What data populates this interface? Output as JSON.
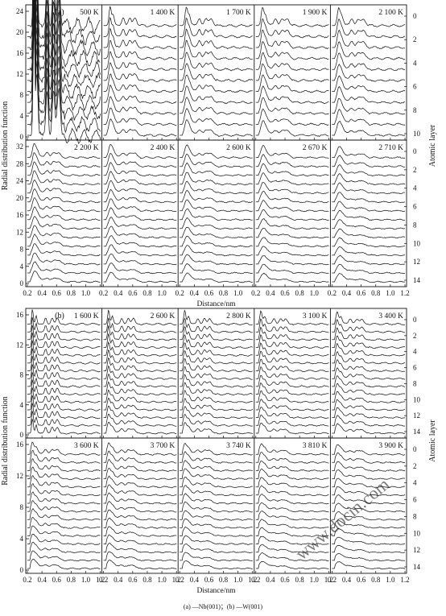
{
  "figure": {
    "caption": "(a) —Nb(001)；(b) —W(001)",
    "watermark": "www.docin.com"
  },
  "chart_data": [
    {
      "type": "line",
      "panel_label": "(a)",
      "xlabel": "Distance/nm",
      "ylabel": "Radial distribution function",
      "right_label": "Atomic layer",
      "rows": [
        {
          "temperatures": [
            "500 K",
            "1 400 K",
            "1 700 K",
            "1 900 K",
            "2 100 K"
          ],
          "yticks": [
            "0",
            "4",
            "8",
            "12",
            "16",
            "20",
            "24"
          ],
          "ylim": [
            0,
            24
          ],
          "layer_ticks": [
            "0",
            "2",
            "4",
            "6",
            "8",
            "10"
          ],
          "n_layers": 11
        },
        {
          "temperatures": [
            "2 200 K",
            "2 400 K",
            "2 600 K",
            "2 670 K",
            "2 710 K"
          ],
          "yticks": [
            "0",
            "4",
            "8",
            "12",
            "16",
            "20",
            "24",
            "28",
            "32"
          ],
          "ylim": [
            0,
            32
          ],
          "layer_ticks": [
            "0",
            "2",
            "4",
            "6",
            "8",
            "10",
            "12",
            "14"
          ],
          "n_layers": 15
        }
      ],
      "xticks": [
        "0.2",
        "0.4",
        "0.6",
        "0.8",
        "1.0",
        "1.2"
      ],
      "xticks_short": [
        "0.2",
        "0.4",
        "0.6",
        "0.8",
        "1.0"
      ],
      "xlim": [
        0.2,
        1.2
      ],
      "peaks_nm": [
        0.29,
        0.33,
        0.47,
        0.56,
        0.63
      ]
    },
    {
      "type": "line",
      "panel_label": "(b)",
      "xlabel": "Distance/nm",
      "ylabel": "Radial distribution function",
      "right_label": "Atomic layer",
      "rows": [
        {
          "temperatures": [
            "1 600 K",
            "2 600 K",
            "2 800 K",
            "3 100 K",
            "3 400 K"
          ],
          "yticks": [
            "0",
            "4",
            "8",
            "12",
            "16"
          ],
          "ylim": [
            0,
            16
          ],
          "layer_ticks": [
            "0",
            "2",
            "4",
            "6",
            "8",
            "10",
            "12",
            "14"
          ],
          "n_layers": 15
        },
        {
          "temperatures": [
            "3 600 K",
            "3 700 K",
            "3 740 K",
            "3 810 K",
            "3 900 K"
          ],
          "yticks": [
            "0",
            "4",
            "8",
            "12",
            "16"
          ],
          "ylim": [
            0,
            16
          ],
          "layer_ticks": [
            "0",
            "2",
            "4",
            "6",
            "8",
            "10",
            "12",
            "14"
          ],
          "n_layers": 15
        }
      ],
      "xticks": [
        "0.2",
        "0.4",
        "0.6",
        "0.8",
        "1.0",
        "1.2"
      ],
      "xticks_short": [
        "0.2",
        "0.4",
        "0.6",
        "0.8",
        "1.0",
        "1.2"
      ],
      "xlim": [
        0.2,
        1.2
      ],
      "peaks_nm": [
        0.27,
        0.32,
        0.45,
        0.54,
        0.61
      ]
    }
  ]
}
